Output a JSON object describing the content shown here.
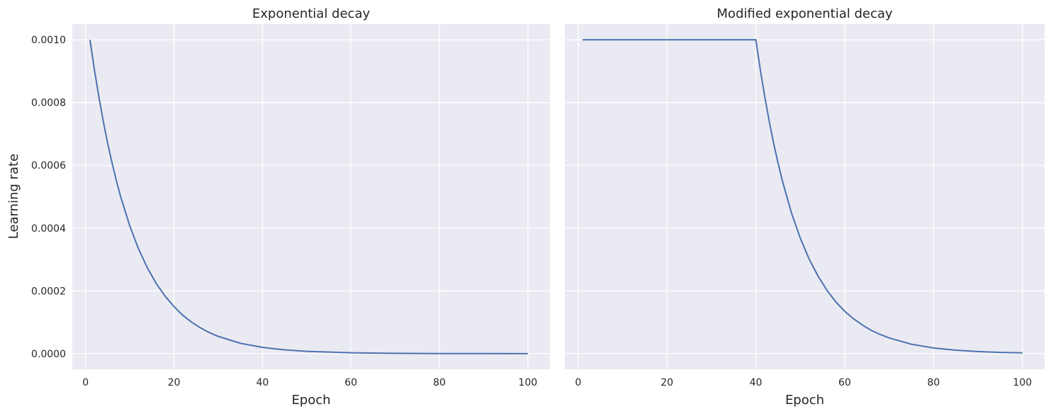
{
  "chart_data": [
    {
      "type": "line",
      "title": "Exponential decay",
      "xlabel": "Epoch",
      "ylabel": "Learning rate",
      "xlim": [
        -3,
        105
      ],
      "ylim": [
        -5e-05,
        0.00105
      ],
      "xticks": [
        0,
        20,
        40,
        60,
        80,
        100
      ],
      "yticks": [
        0.0,
        0.0002,
        0.0004,
        0.0006,
        0.0008,
        0.001
      ],
      "ytick_labels": [
        "0.0000",
        "0.0002",
        "0.0004",
        "0.0006",
        "0.0008",
        "0.0010"
      ],
      "series": [
        {
          "color": "#4c72b0",
          "x": [
            1,
            2,
            3,
            4,
            5,
            6,
            7,
            8,
            10,
            12,
            14,
            16,
            18,
            20,
            22,
            24,
            26,
            28,
            30,
            35,
            40,
            45,
            50,
            60,
            70,
            80,
            90,
            100
          ],
          "y": [
            0.001,
            0.000905,
            0.000819,
            0.000741,
            0.00067,
            0.000607,
            0.000549,
            0.000497,
            0.000407,
            0.000333,
            0.000273,
            0.000223,
            0.000183,
            0.00015,
            0.000122,
            0.0001,
            8.2e-05,
            6.7e-05,
            5.5e-05,
            3.3e-05,
            2e-05,
            1.2e-05,
            7.4e-06,
            2.7e-06,
            1e-06,
            3.7e-07,
            1.4e-07,
            5e-08
          ]
        }
      ],
      "grid": true
    },
    {
      "type": "line",
      "title": "Modified exponential decay",
      "xlabel": "Epoch",
      "ylabel": "",
      "xlim": [
        -3,
        105
      ],
      "ylim": [
        -5e-05,
        0.00105
      ],
      "xticks": [
        0,
        20,
        40,
        60,
        80,
        100
      ],
      "yticks": [
        0.0,
        0.0002,
        0.0004,
        0.0006,
        0.0008,
        0.001
      ],
      "series": [
        {
          "color": "#4c72b0",
          "x": [
            1,
            40,
            41,
            42,
            43,
            44,
            45,
            46,
            48,
            50,
            52,
            54,
            56,
            58,
            60,
            62,
            64,
            66,
            68,
            70,
            75,
            80,
            85,
            90,
            95,
            100
          ],
          "y": [
            0.001,
            0.001,
            0.000905,
            0.000819,
            0.000741,
            0.00067,
            0.000607,
            0.000549,
            0.000449,
            0.000368,
            0.000301,
            0.000247,
            0.000202,
            0.000165,
            0.000135,
            0.000111,
            9.1e-05,
            7.4e-05,
            6.1e-05,
            5e-05,
            3e-05,
            1.8e-05,
            1.1e-05,
            6.7e-06,
            4e-06,
            2.5e-06
          ]
        }
      ],
      "grid": true
    }
  ]
}
